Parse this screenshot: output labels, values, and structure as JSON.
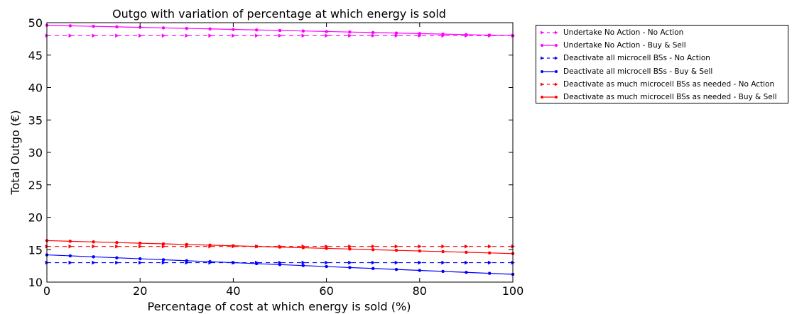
{
  "chart_data": {
    "type": "line",
    "title": "Outgo with variation of percentage at which energy is sold",
    "xlabel": "Percentage of cost at which energy is sold (%)",
    "ylabel": "Total Outgo (€)",
    "xlim": [
      0,
      100
    ],
    "ylim": [
      10,
      50
    ],
    "xticks": [
      "0",
      "20",
      "40",
      "60",
      "80",
      "100"
    ],
    "yticks": [
      "10",
      "15",
      "20",
      "25",
      "30",
      "35",
      "40",
      "45",
      "50"
    ],
    "grid": false,
    "legend_position": "outside-right-top",
    "x": [
      0,
      5,
      10,
      15,
      20,
      25,
      30,
      35,
      40,
      45,
      50,
      55,
      60,
      65,
      70,
      75,
      80,
      85,
      90,
      95,
      100
    ],
    "series": [
      {
        "name": "Undertake No Action - No Action",
        "color": "#ff00ff",
        "style": "dashed",
        "marker": "triangle-right",
        "values": [
          48,
          48,
          48,
          48,
          48,
          48,
          48,
          48,
          48,
          48,
          48,
          48,
          48,
          48,
          48,
          48,
          48,
          48,
          48,
          48,
          48
        ]
      },
      {
        "name": "Undertake No Action - Buy & Sell",
        "color": "#ff00ff",
        "style": "solid",
        "marker": "dot",
        "values": [
          49.6,
          49.52,
          49.44,
          49.36,
          49.28,
          49.2,
          49.12,
          49.04,
          48.96,
          48.88,
          48.8,
          48.72,
          48.64,
          48.56,
          48.48,
          48.4,
          48.32,
          48.24,
          48.16,
          48.08,
          48.0
        ]
      },
      {
        "name": "Deactivate all microcell BSs - No Action",
        "color": "#0000ff",
        "style": "dashed",
        "marker": "triangle-right",
        "values": [
          13,
          13,
          13,
          13,
          13,
          13,
          13,
          13,
          13,
          13,
          13,
          13,
          13,
          13,
          13,
          13,
          13,
          13,
          13,
          13,
          13
        ]
      },
      {
        "name": "Deactivate all microcell BSs - Buy & Sell",
        "color": "#0000ff",
        "style": "solid",
        "marker": "dot",
        "values": [
          14.2,
          14.05,
          13.9,
          13.75,
          13.6,
          13.45,
          13.3,
          13.15,
          13.0,
          12.85,
          12.7,
          12.55,
          12.4,
          12.25,
          12.1,
          11.95,
          11.8,
          11.65,
          11.5,
          11.35,
          11.2
        ]
      },
      {
        "name": "Deactivate as much microcell BSs as needed - No Action",
        "color": "#ff0000",
        "style": "dashed",
        "marker": "triangle-right",
        "values": [
          15.5,
          15.5,
          15.5,
          15.5,
          15.5,
          15.5,
          15.5,
          15.5,
          15.5,
          15.5,
          15.5,
          15.5,
          15.5,
          15.5,
          15.5,
          15.5,
          15.5,
          15.5,
          15.5,
          15.5,
          15.5
        ]
      },
      {
        "name": "Deactivate as much microcell BSs as needed - Buy & Sell",
        "color": "#ff0000",
        "style": "solid",
        "marker": "dot",
        "values": [
          16.4,
          16.3,
          16.2,
          16.1,
          16.0,
          15.9,
          15.8,
          15.7,
          15.6,
          15.5,
          15.4,
          15.3,
          15.2,
          15.1,
          15.0,
          14.9,
          14.8,
          14.7,
          14.6,
          14.5,
          14.4
        ]
      }
    ]
  }
}
